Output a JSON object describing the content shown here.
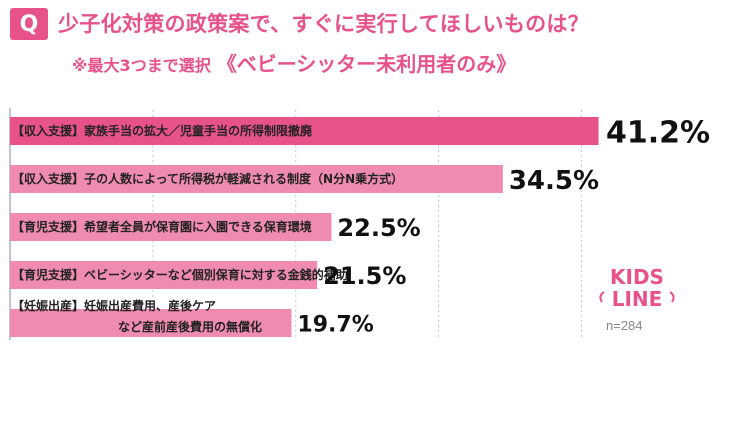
{
  "header": {
    "badge": "Q",
    "title": "少子化対策の政策案で、すぐに実行してほしいものは？",
    "note": "※最大3つまで選択",
    "emphasis": "《ベビーシッター未利用者のみ》"
  },
  "footer": {
    "logo_line1": "KIDS",
    "logo_line2": "LINE",
    "n_label": "n=284"
  },
  "colors": {
    "accent": "#e8528a",
    "bar_top": "#e8528a",
    "bar_other": "#ef8ab0"
  },
  "chart_data": {
    "type": "bar",
    "orientation": "horizontal",
    "categories": [
      [
        "【収入支援】家族手当の拡大／児童手当の所得制限撤廃"
      ],
      [
        "【収入支援】子の人数によって所得税が軽減される制度（N分N乗方式）"
      ],
      [
        "【育児支援】希望者全員が保育園に入園できる保育環境"
      ],
      [
        "【育児支援】ベビーシッターなど個別保育に対する金銭的補助"
      ],
      [
        "【妊娠出産】妊娠出産費用、産後ケア",
        "など産前産後費用の無償化"
      ]
    ],
    "values": [
      41.2,
      34.5,
      22.5,
      21.5,
      19.7
    ],
    "value_labels": [
      "41.2%",
      "34.5%",
      "22.5%",
      "21.5%",
      "19.7%"
    ],
    "unit": "%",
    "xlim": [
      0,
      42
    ],
    "grid": true
  }
}
